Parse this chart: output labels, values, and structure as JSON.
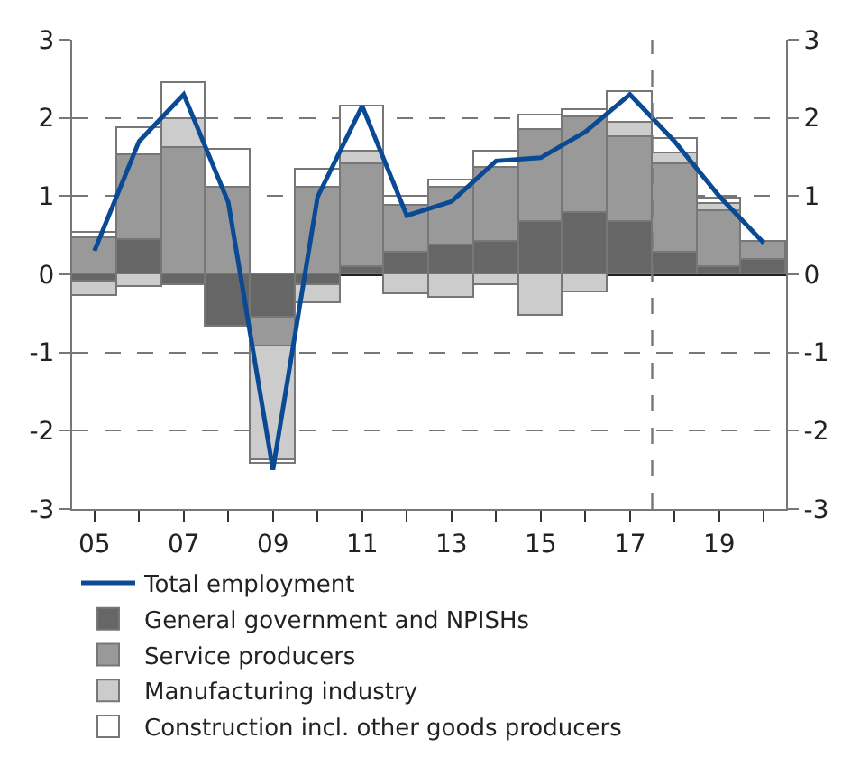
{
  "chart_data": {
    "type": "bar",
    "stacked": true,
    "x": [
      2005,
      2006,
      2007,
      2008,
      2009,
      2010,
      2011,
      2012,
      2013,
      2014,
      2015,
      2016,
      2017,
      2018,
      2019,
      2020
    ],
    "xlim": [
      2004.5,
      2020.5
    ],
    "xticks": [
      {
        "value": 2005,
        "label": "05"
      },
      {
        "value": 2006,
        "label": null
      },
      {
        "value": 2007,
        "label": "07"
      },
      {
        "value": 2008,
        "label": null
      },
      {
        "value": 2009,
        "label": "09"
      },
      {
        "value": 2010,
        "label": null
      },
      {
        "value": 2011,
        "label": "11"
      },
      {
        "value": 2012,
        "label": null
      },
      {
        "value": 2013,
        "label": "13"
      },
      {
        "value": 2014,
        "label": null
      },
      {
        "value": 2015,
        "label": "15"
      },
      {
        "value": 2016,
        "label": null
      },
      {
        "value": 2017,
        "label": "17"
      },
      {
        "value": 2018,
        "label": null
      },
      {
        "value": 2019,
        "label": "19"
      },
      {
        "value": 2020,
        "label": null
      }
    ],
    "ylim": [
      -3,
      3
    ],
    "yticks": [
      -3,
      -2,
      -1,
      0,
      1,
      2,
      3
    ],
    "y2lim": [
      -3,
      3
    ],
    "y2ticks": [
      -3,
      -2,
      -1,
      0,
      1,
      2,
      3
    ],
    "grid": "y",
    "legend": "bottom",
    "series": [
      {
        "name": "Total employment",
        "type": "line",
        "color": "#0a4a94",
        "marker": "none",
        "line_style": "solid",
        "values": [
          0.3,
          1.7,
          2.3,
          0.92,
          -2.5,
          0.99,
          2.15,
          0.75,
          0.93,
          1.45,
          1.49,
          1.82,
          2.3,
          1.7,
          1.0,
          0.4
        ]
      },
      {
        "name": "General government and NPISHs",
        "color": "#666666",
        "values": [
          -0.1,
          0.44,
          -0.13,
          -0.68,
          -0.55,
          -0.13,
          0.09,
          0.27,
          0.37,
          0.42,
          0.68,
          0.78,
          0.67,
          0.28,
          0.1,
          0.18
        ]
      },
      {
        "name": "Service producers",
        "color": "#999999",
        "values": [
          0.47,
          1.08,
          1.62,
          1.1,
          -0.37,
          1.1,
          1.31,
          0.6,
          0.74,
          0.95,
          1.17,
          1.23,
          1.08,
          1.13,
          0.7,
          0.23
        ]
      },
      {
        "name": "Manufacturing industry",
        "color": "#cccccc",
        "values": [
          -0.17,
          -0.15,
          0.37,
          null,
          -1.46,
          -0.23,
          0.17,
          -0.25,
          -0.3,
          -0.13,
          -0.54,
          -0.23,
          0.18,
          0.14,
          0.09,
          null
        ]
      },
      {
        "name": "Construction incl. other goods producers",
        "color": "#ffffff",
        "values": [
          0.06,
          0.35,
          0.46,
          0.49,
          -0.05,
          0.24,
          0.58,
          0.13,
          0.1,
          0.21,
          0.19,
          0.08,
          0.4,
          0.18,
          0.07,
          null
        ]
      }
    ],
    "ref_lines": [
      {
        "axis": "x",
        "value": 2017.5,
        "label": null,
        "color": "#777777",
        "line_style": "dashed"
      }
    ]
  }
}
